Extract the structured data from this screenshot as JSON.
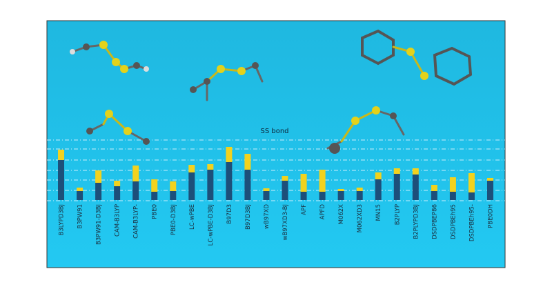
{
  "chart_data": {
    "type": "stacked-bar",
    "annotation": "SS bond",
    "categories": [
      "B3LYPD3BJ",
      "B3PW91",
      "B3PW91-D3BJ",
      "CAM-B3LYP",
      "CAM-B3LYP-",
      "PBE0",
      "PBE0-D3BJ",
      "LC-wPBE",
      "LC-wPBE-D3BJ",
      "B97D3",
      "B97D3BJ",
      "wB97XD",
      "wB97XD3-BJ",
      "APF",
      "APFD",
      "M062X",
      "M062XD3",
      "MN15",
      "B2PLYP",
      "B2PLYPD3BJ",
      "DSDPBEP86",
      "DSDPBEh95",
      "DSDPBEh95-",
      "PBE0DH"
    ],
    "series": [
      {
        "color": "#1d4f7a",
        "values": [
          58,
          13,
          25,
          20,
          27,
          12,
          13,
          40,
          44,
          55,
          44,
          13,
          28,
          12,
          12,
          13,
          13,
          30,
          38,
          37,
          13,
          12,
          11,
          28
        ]
      },
      {
        "color": "#f2d21e",
        "values": [
          15,
          5,
          18,
          8,
          23,
          18,
          14,
          11,
          8,
          22,
          23,
          4,
          7,
          26,
          32,
          3,
          5,
          10,
          8,
          9,
          9,
          21,
          28,
          4
        ]
      }
    ],
    "ylim": [
      0,
      90
    ]
  }
}
